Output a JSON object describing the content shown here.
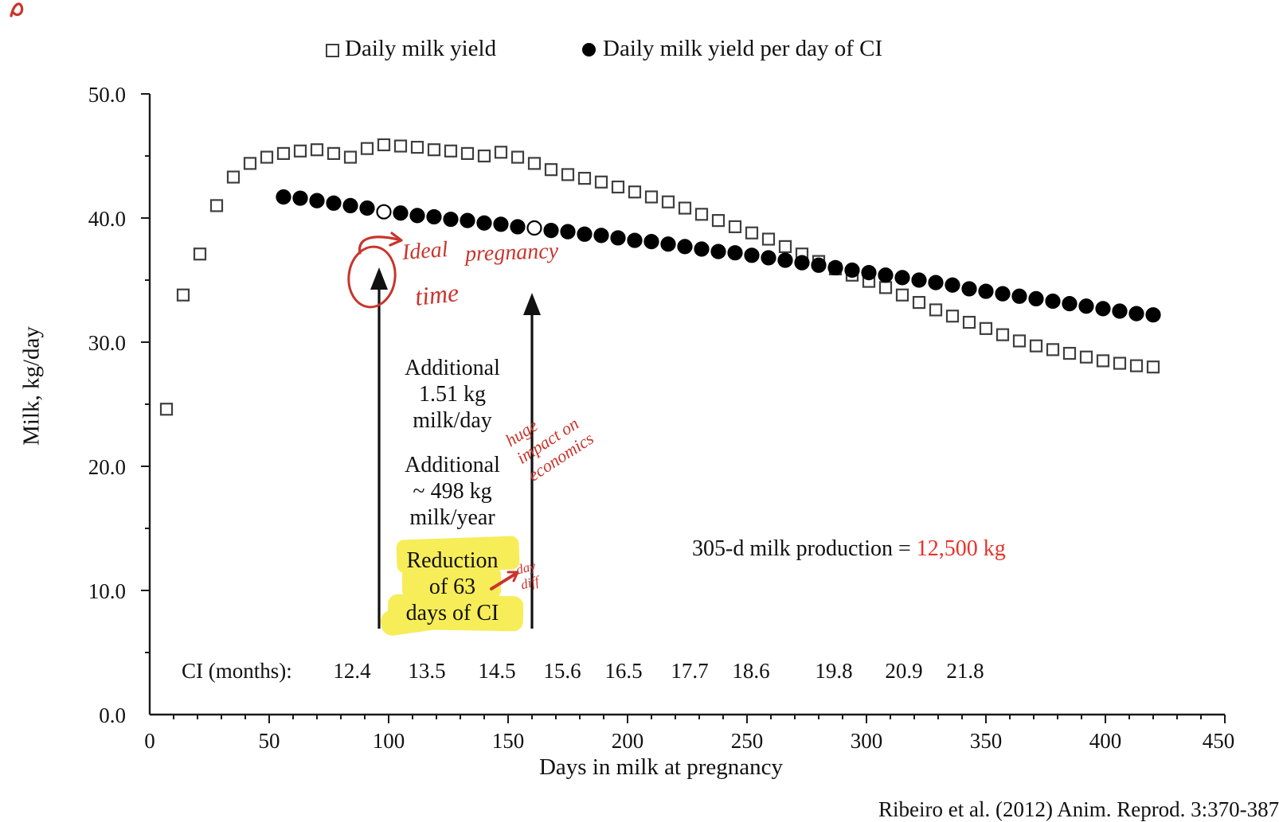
{
  "legend": {
    "items": [
      {
        "label": "Daily milk yield",
        "marker": "open-square"
      },
      {
        "label": "Daily milk yield per day of CI",
        "marker": "filled-circle"
      }
    ]
  },
  "chart_data": {
    "type": "scatter",
    "title": "",
    "xlabel": "Days in milk at pregnancy",
    "ylabel": "Milk, kg/day",
    "xlim": [
      0,
      450
    ],
    "ylim": [
      0,
      50
    ],
    "grid": false,
    "legend_position": "top",
    "x_tick_labels": [
      "0",
      "50",
      "100",
      "150",
      "200",
      "250",
      "300",
      "350",
      "400",
      "450"
    ],
    "y_tick_labels": [
      "0.0",
      "10.0",
      "20.0",
      "30.0",
      "40.0",
      "50.0"
    ],
    "x_minor_step": 10,
    "y_minor_step": 5,
    "series": [
      {
        "name": "Daily milk yield",
        "marker": "open-square",
        "points": [
          [
            7,
            24.6
          ],
          [
            14,
            33.8
          ],
          [
            21,
            37.1
          ],
          [
            28,
            41.0
          ],
          [
            35,
            43.3
          ],
          [
            42,
            44.4
          ],
          [
            49,
            44.9
          ],
          [
            56,
            45.2
          ],
          [
            63,
            45.4
          ],
          [
            70,
            45.5
          ],
          [
            77,
            45.2
          ],
          [
            84,
            44.9
          ],
          [
            91,
            45.6
          ],
          [
            98,
            45.9
          ],
          [
            105,
            45.8
          ],
          [
            112,
            45.7
          ],
          [
            119,
            45.5
          ],
          [
            126,
            45.4
          ],
          [
            133,
            45.2
          ],
          [
            140,
            45.0
          ],
          [
            147,
            45.3
          ],
          [
            154,
            44.9
          ],
          [
            161,
            44.4
          ],
          [
            168,
            43.9
          ],
          [
            175,
            43.5
          ],
          [
            182,
            43.2
          ],
          [
            189,
            42.9
          ],
          [
            196,
            42.5
          ],
          [
            203,
            42.1
          ],
          [
            210,
            41.7
          ],
          [
            217,
            41.3
          ],
          [
            224,
            40.8
          ],
          [
            231,
            40.3
          ],
          [
            238,
            39.8
          ],
          [
            245,
            39.3
          ],
          [
            252,
            38.8
          ],
          [
            259,
            38.3
          ],
          [
            266,
            37.7
          ],
          [
            273,
            37.1
          ],
          [
            280,
            36.5
          ],
          [
            287,
            35.9
          ],
          [
            294,
            35.4
          ],
          [
            301,
            34.9
          ],
          [
            308,
            34.4
          ],
          [
            315,
            33.8
          ],
          [
            322,
            33.2
          ],
          [
            329,
            32.6
          ],
          [
            336,
            32.1
          ],
          [
            343,
            31.6
          ],
          [
            350,
            31.1
          ],
          [
            357,
            30.6
          ],
          [
            364,
            30.1
          ],
          [
            371,
            29.7
          ],
          [
            378,
            29.4
          ],
          [
            385,
            29.1
          ],
          [
            392,
            28.8
          ],
          [
            399,
            28.5
          ],
          [
            406,
            28.3
          ],
          [
            413,
            28.1
          ],
          [
            420,
            28.0
          ]
        ]
      },
      {
        "name": "Daily milk yield per day of CI",
        "marker": "filled-circle",
        "open_point_days": [
          98,
          161
        ],
        "points": [
          [
            56,
            41.7
          ],
          [
            63,
            41.6
          ],
          [
            70,
            41.4
          ],
          [
            77,
            41.2
          ],
          [
            84,
            41.0
          ],
          [
            91,
            40.8
          ],
          [
            98,
            40.5
          ],
          [
            105,
            40.4
          ],
          [
            112,
            40.2
          ],
          [
            119,
            40.1
          ],
          [
            126,
            39.9
          ],
          [
            133,
            39.8
          ],
          [
            140,
            39.6
          ],
          [
            147,
            39.5
          ],
          [
            154,
            39.3
          ],
          [
            161,
            39.2
          ],
          [
            168,
            39.0
          ],
          [
            175,
            38.9
          ],
          [
            182,
            38.7
          ],
          [
            189,
            38.6
          ],
          [
            196,
            38.4
          ],
          [
            203,
            38.2
          ],
          [
            210,
            38.1
          ],
          [
            217,
            37.9
          ],
          [
            224,
            37.7
          ],
          [
            231,
            37.5
          ],
          [
            238,
            37.3
          ],
          [
            245,
            37.2
          ],
          [
            252,
            37.0
          ],
          [
            259,
            36.8
          ],
          [
            266,
            36.6
          ],
          [
            273,
            36.4
          ],
          [
            280,
            36.2
          ],
          [
            287,
            36.0
          ],
          [
            294,
            35.8
          ],
          [
            301,
            35.6
          ],
          [
            308,
            35.4
          ],
          [
            315,
            35.2
          ],
          [
            322,
            35.0
          ],
          [
            329,
            34.8
          ],
          [
            336,
            34.6
          ],
          [
            343,
            34.3
          ],
          [
            350,
            34.1
          ],
          [
            357,
            33.9
          ],
          [
            364,
            33.7
          ],
          [
            371,
            33.5
          ],
          [
            378,
            33.3
          ],
          [
            385,
            33.1
          ],
          [
            392,
            32.9
          ],
          [
            399,
            32.7
          ],
          [
            406,
            32.5
          ],
          [
            413,
            32.3
          ],
          [
            420,
            32.2
          ]
        ]
      }
    ],
    "annotation_arrow_days": [
      96,
      160
    ]
  },
  "annotations": {
    "additional_day": "Additional\n1.51 kg\nmilk/day",
    "additional_year": "Additional\n~ 498 kg\nmilk/year",
    "reduction": "Reduction\nof 63\ndays of CI",
    "production_label": "305-d milk production = ",
    "production_value": "12,500 kg"
  },
  "ci_row": {
    "label": "CI (months):",
    "values": [
      "12.4",
      "13.5",
      "14.5",
      "15.6",
      "16.5",
      "17.7",
      "18.6",
      "19.8",
      "20.9",
      "21.8"
    ]
  },
  "handwriting": {
    "ideal_word1": "Ideal",
    "ideal_word2": "pregnancy",
    "ideal_word3": "time",
    "impact_text": "huge\nimpact on\neconomics",
    "diff_word1": "day",
    "diff_word2": "diff",
    "color": "#c9352c"
  },
  "citation": "Ribeiro et al. (2012) Anim. Reprod. 3:370-387",
  "colors": {
    "accent_red": "#e8332a",
    "highlight_yellow": "#f6ed51",
    "axis_black": "#1a1a1a",
    "square_stroke": "#3f3f3f",
    "circle_fill": "#000000"
  }
}
